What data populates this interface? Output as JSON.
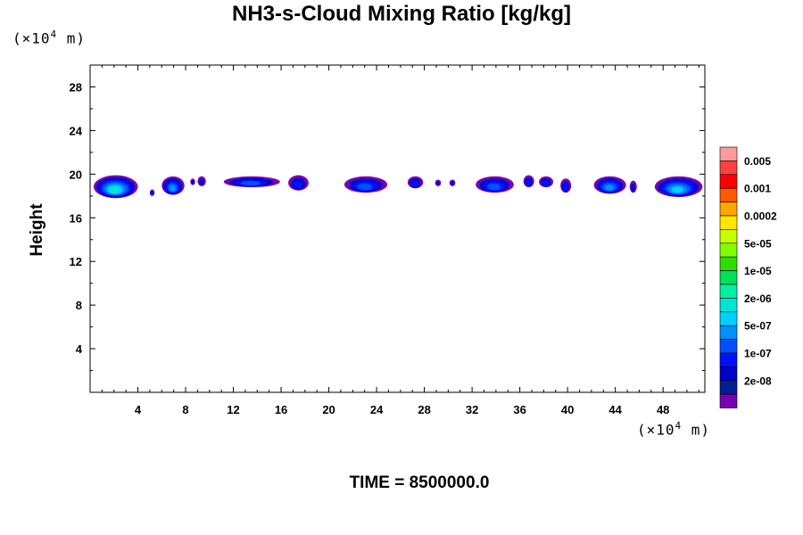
{
  "chart_data": {
    "type": "contour",
    "title": "NH3-s-Cloud Mixing Ratio [kg/kg]",
    "ylabel": "Height",
    "y_unit_base": "(×10",
    "y_unit_exp": "4",
    "y_unit_tail": " m)",
    "x_unit_base": "(×10",
    "x_unit_exp": "4",
    "x_unit_tail": " m)",
    "footer": "TIME = 8500000.0",
    "xlim": [
      0,
      51.5
    ],
    "ylim": [
      0,
      30
    ],
    "x_ticks": [
      4,
      8,
      12,
      16,
      20,
      24,
      28,
      32,
      36,
      40,
      44,
      48
    ],
    "x_tick_labels": [
      "4",
      "8",
      "12",
      "16",
      "20",
      "24",
      "28",
      "32",
      "36",
      "40",
      "44",
      "48"
    ],
    "y_ticks": [
      4,
      8,
      12,
      16,
      20,
      24,
      28
    ],
    "y_tick_labels": [
      "4",
      "8",
      "12",
      "16",
      "20",
      "24",
      "28"
    ],
    "colorbar": {
      "colors": [
        "#ff9a9a",
        "#ff4040",
        "#ff0000",
        "#ff5a00",
        "#ffa500",
        "#ffe600",
        "#c8ff00",
        "#80ff00",
        "#2ddc00",
        "#00e05a",
        "#00f0a0",
        "#00e6d2",
        "#00d0ff",
        "#0090ff",
        "#0050ff",
        "#0010ff",
        "#0000c8",
        "#002090",
        "#7800b4"
      ],
      "labels": [
        "0.005",
        "0.001",
        "0.0002",
        "5e-05",
        "1e-05",
        "2e-06",
        "5e-07",
        "1e-07",
        "2e-08"
      ]
    },
    "cloud_patches": [
      {
        "x0": 0.3,
        "x1": 4.0,
        "ytop": 19.9,
        "ybot": 17.8,
        "level": 7
      },
      {
        "x0": 5.0,
        "x1": 5.4,
        "ytop": 18.6,
        "ybot": 18.0,
        "level": 3
      },
      {
        "x0": 6.0,
        "x1": 7.9,
        "ytop": 19.8,
        "ybot": 18.1,
        "level": 5
      },
      {
        "x0": 8.4,
        "x1": 8.8,
        "ytop": 19.6,
        "ybot": 19.0,
        "level": 2
      },
      {
        "x0": 9.0,
        "x1": 9.7,
        "ytop": 19.8,
        "ybot": 18.9,
        "level": 2
      },
      {
        "x0": 11.2,
        "x1": 15.9,
        "ytop": 19.8,
        "ybot": 18.8,
        "level": 4
      },
      {
        "x0": 16.6,
        "x1": 18.3,
        "ytop": 19.9,
        "ybot": 18.5,
        "level": 3
      },
      {
        "x0": 21.3,
        "x1": 24.9,
        "ytop": 19.8,
        "ybot": 18.3,
        "level": 4
      },
      {
        "x0": 26.6,
        "x1": 27.9,
        "ytop": 19.8,
        "ybot": 18.7,
        "level": 3
      },
      {
        "x0": 28.9,
        "x1": 29.4,
        "ytop": 19.5,
        "ybot": 18.9,
        "level": 2
      },
      {
        "x0": 30.1,
        "x1": 30.6,
        "ytop": 19.5,
        "ybot": 18.9,
        "level": 2
      },
      {
        "x0": 32.3,
        "x1": 35.5,
        "ytop": 19.8,
        "ybot": 18.3,
        "level": 4
      },
      {
        "x0": 36.3,
        "x1": 37.2,
        "ytop": 19.9,
        "ybot": 18.8,
        "level": 3
      },
      {
        "x0": 37.6,
        "x1": 38.8,
        "ytop": 19.8,
        "ybot": 18.8,
        "level": 3
      },
      {
        "x0": 39.4,
        "x1": 40.3,
        "ytop": 19.6,
        "ybot": 18.3,
        "level": 3
      },
      {
        "x0": 42.2,
        "x1": 44.9,
        "ytop": 19.8,
        "ybot": 18.2,
        "level": 5
      },
      {
        "x0": 45.2,
        "x1": 45.8,
        "ytop": 19.4,
        "ybot": 18.3,
        "level": 2
      },
      {
        "x0": 47.3,
        "x1": 51.3,
        "ytop": 19.8,
        "ybot": 17.9,
        "level": 6
      }
    ]
  }
}
